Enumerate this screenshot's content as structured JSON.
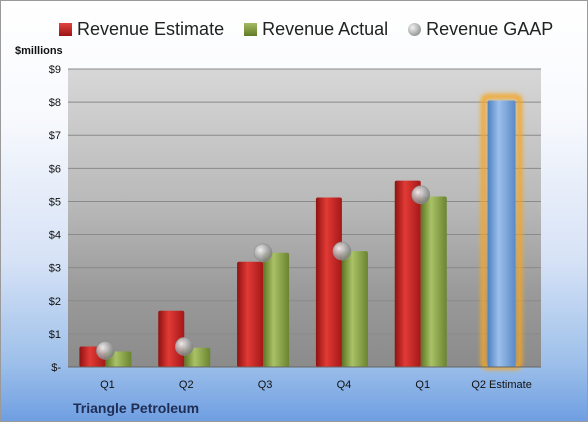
{
  "chart_data": {
    "type": "bar",
    "ylabel": "$millions",
    "company": "Triangle Petroleum",
    "categories": [
      "Q1",
      "Q2",
      "Q3",
      "Q4",
      "Q1",
      "Q2 Estimate"
    ],
    "y_ticks": [
      "$-",
      "$1",
      "$2",
      "$3",
      "$4",
      "$5",
      "$6",
      "$7",
      "$8",
      "$9"
    ],
    "ylim": [
      0,
      9
    ],
    "legend_position": "top",
    "series": [
      {
        "name": "Revenue Estimate",
        "type": "bar",
        "color": "#c0201f",
        "values": [
          0.62,
          1.7,
          3.18,
          5.12,
          5.63,
          null
        ]
      },
      {
        "name": "Revenue Actual",
        "type": "bar",
        "color": "#7f9a3c",
        "values": [
          0.47,
          0.58,
          3.45,
          3.5,
          5.15,
          null
        ]
      },
      {
        "name": "Revenue GAAP",
        "type": "marker",
        "color": "#a9a9a9",
        "values": [
          0.5,
          0.62,
          3.45,
          3.5,
          5.2,
          null
        ]
      },
      {
        "name": "",
        "type": "bar",
        "color": "#6f9ed6",
        "highlight": "#f5a623",
        "values": [
          null,
          null,
          null,
          null,
          null,
          8.05
        ]
      }
    ],
    "grid": true
  }
}
